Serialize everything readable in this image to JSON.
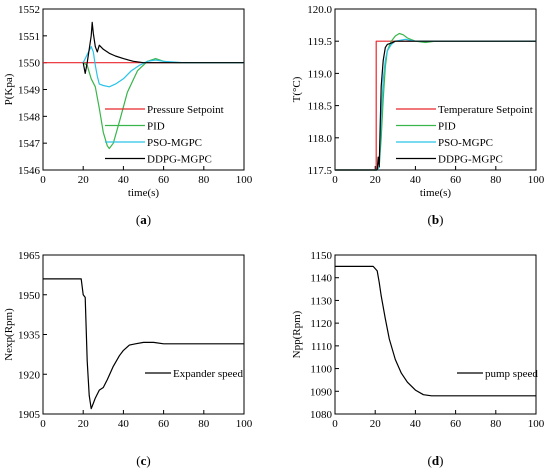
{
  "chart_data": [
    {
      "type": "line",
      "panel": "a",
      "caption_letter": "a",
      "xlabel": "time(s)",
      "ylabel": "P(Kpa)",
      "xlim": [
        0,
        100
      ],
      "ylim": [
        1546,
        1552
      ],
      "xticks": [
        0,
        20,
        40,
        60,
        80,
        100
      ],
      "yticks": [
        1546,
        1547,
        1548,
        1549,
        1550,
        1551,
        1552
      ],
      "legend_position": "right",
      "series": [
        {
          "name": "Pressure Setpoint",
          "color": "#e8262b",
          "x": [
            0,
            100
          ],
          "y": [
            1550,
            1550
          ]
        },
        {
          "name": "PID",
          "color": "#39b54a",
          "x": [
            20,
            22,
            24,
            26,
            28,
            30,
            32,
            33,
            35,
            38,
            42,
            47,
            52,
            56,
            60,
            66,
            72,
            80,
            100
          ],
          "y": [
            1550,
            1549.9,
            1549.4,
            1549.1,
            1548.3,
            1547.4,
            1546.9,
            1546.8,
            1547.0,
            1547.8,
            1548.9,
            1549.7,
            1550.05,
            1550.15,
            1550.05,
            1550.0,
            1550.0,
            1550.0,
            1550.0
          ]
        },
        {
          "name": "PSO-MGPC",
          "color": "#29c3e8",
          "x": [
            20,
            22,
            24,
            25,
            26,
            27,
            28,
            30,
            33,
            36,
            40,
            44,
            48,
            52,
            56,
            60,
            70,
            100
          ],
          "y": [
            1550,
            1550.3,
            1550.6,
            1550.4,
            1549.9,
            1549.5,
            1549.2,
            1549.15,
            1549.1,
            1549.2,
            1549.4,
            1549.7,
            1549.9,
            1550.05,
            1550.1,
            1550.05,
            1550.0,
            1550.0
          ]
        },
        {
          "name": "DDPG-MGPC",
          "color": "#000000",
          "x": [
            20,
            21,
            22,
            23,
            24,
            24.5,
            25,
            26,
            27,
            28,
            30,
            33,
            36,
            40,
            45,
            50,
            55,
            60,
            100
          ],
          "y": [
            1550,
            1549.6,
            1550.0,
            1550.5,
            1551.0,
            1551.5,
            1551.1,
            1550.6,
            1550.4,
            1550.65,
            1550.5,
            1550.35,
            1550.25,
            1550.15,
            1550.05,
            1550.0,
            1550.0,
            1550.0,
            1550.0
          ]
        }
      ]
    },
    {
      "type": "line",
      "panel": "b",
      "caption_letter": "b",
      "xlabel": "time(s)",
      "ylabel": "T(°C)",
      "xlim": [
        0,
        100
      ],
      "ylim": [
        117.5,
        120.0
      ],
      "xticks": [
        0,
        20,
        40,
        60,
        80,
        100
      ],
      "yticks": [
        117.5,
        118.0,
        118.5,
        119.0,
        119.5,
        120.0
      ],
      "legend_position": "bottom-right",
      "series": [
        {
          "name": "Temperature Setpoint",
          "color": "#e8262b",
          "x": [
            0,
            20.5,
            20.5,
            100
          ],
          "y": [
            117.5,
            117.5,
            119.5,
            119.5
          ]
        },
        {
          "name": "PID",
          "color": "#39b54a",
          "x": [
            0,
            21,
            22,
            23,
            24,
            25,
            26,
            28,
            30,
            32,
            34,
            36,
            40,
            45,
            50,
            60,
            100
          ],
          "y": [
            117.5,
            117.5,
            117.55,
            118.0,
            118.6,
            119.1,
            119.35,
            119.5,
            119.58,
            119.62,
            119.6,
            119.55,
            119.5,
            119.48,
            119.5,
            119.5,
            119.5
          ]
        },
        {
          "name": "PSO-MGPC",
          "color": "#29c3e8",
          "x": [
            0,
            21,
            22,
            23,
            24,
            25,
            26,
            28,
            30,
            35,
            40,
            50,
            100
          ],
          "y": [
            117.5,
            117.5,
            117.55,
            118.3,
            118.9,
            119.2,
            119.35,
            119.45,
            119.5,
            119.53,
            119.5,
            119.5,
            119.5
          ]
        },
        {
          "name": "DDPG-MGPC",
          "color": "#000000",
          "x": [
            0,
            21,
            21.5,
            22,
            22.5,
            23,
            24,
            25,
            26,
            28,
            30,
            35,
            40,
            100
          ],
          "y": [
            117.5,
            117.5,
            117.7,
            117.55,
            118.2,
            118.8,
            119.2,
            119.4,
            119.45,
            119.47,
            119.5,
            119.5,
            119.5,
            119.5
          ]
        }
      ]
    },
    {
      "type": "line",
      "panel": "c",
      "caption_letter": "c",
      "xlabel": "",
      "ylabel": "Nexp(Rpm)",
      "xlim": [
        0,
        100
      ],
      "ylim": [
        1905,
        1965
      ],
      "xticks": [
        0,
        20,
        40,
        60,
        80,
        100
      ],
      "yticks": [
        1905,
        1920,
        1935,
        1950,
        1965
      ],
      "legend_position": "right",
      "series": [
        {
          "name": "Expander speed",
          "color": "#000000",
          "x": [
            0,
            19,
            20,
            21,
            22,
            23,
            24,
            25,
            26,
            28,
            30,
            32,
            35,
            38,
            40,
            43,
            46,
            50,
            55,
            60,
            100
          ],
          "y": [
            1956,
            1956,
            1950,
            1949,
            1925,
            1912,
            1907,
            1909,
            1911,
            1914,
            1915,
            1918,
            1923,
            1927,
            1929,
            1931,
            1931.5,
            1932,
            1932,
            1931.5,
            1931.5
          ]
        }
      ]
    },
    {
      "type": "line",
      "panel": "d",
      "caption_letter": "d",
      "xlabel": "",
      "ylabel": "Npp(Rpm)",
      "xlim": [
        0,
        100
      ],
      "ylim": [
        1080,
        1150
      ],
      "xticks": [
        0,
        20,
        40,
        60,
        80,
        100
      ],
      "yticks": [
        1080,
        1090,
        1100,
        1110,
        1120,
        1130,
        1140,
        1150
      ],
      "legend_position": "right",
      "series": [
        {
          "name": "pump speed",
          "color": "#000000",
          "x": [
            0,
            18,
            19,
            20,
            21,
            22,
            23,
            25,
            27,
            30,
            33,
            36,
            40,
            44,
            48,
            55,
            60,
            100
          ],
          "y": [
            1145,
            1145,
            1145,
            1144,
            1143,
            1138,
            1132,
            1122,
            1113,
            1104,
            1098,
            1094,
            1090.5,
            1088.5,
            1088,
            1088,
            1088,
            1088
          ]
        }
      ]
    }
  ]
}
